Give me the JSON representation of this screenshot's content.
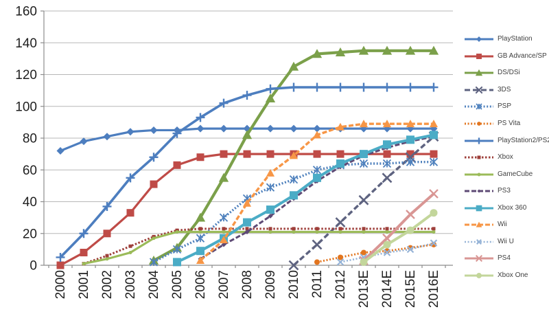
{
  "chart_data": {
    "type": "line",
    "title": "",
    "xlabel": "",
    "ylabel": "",
    "ylim": [
      0,
      160
    ],
    "ytick_step": 20,
    "grid": true,
    "legend_position": "right",
    "axis_text_color": "#1f1f1f",
    "grid_color": "#b7b7b7",
    "axis_line_color": "#8c8c8c",
    "categories": [
      "2000",
      "2001",
      "2002",
      "2003",
      "2004",
      "2005",
      "2006",
      "2007",
      "2008",
      "2009",
      "2010",
      "2011",
      "2012",
      "2013E",
      "2014E",
      "2015E",
      "2016E"
    ],
    "series": [
      {
        "id": "playstation",
        "name": "PlayStation",
        "color": "#4d7ebf",
        "marker": "diamond",
        "marker_size": 11,
        "width": 3.2,
        "dash": "",
        "values": [
          72,
          78,
          81,
          84,
          85,
          85,
          86,
          86,
          86,
          86,
          86,
          86,
          86,
          86,
          86,
          86,
          86
        ]
      },
      {
        "id": "gb-advance-sp",
        "name": "GB Advance/SP",
        "color": "#bf4b47",
        "marker": "square",
        "marker_size": 11,
        "width": 3.2,
        "dash": "",
        "values": [
          0,
          8,
          20,
          33,
          51,
          63,
          68,
          70,
          70,
          70,
          70,
          70,
          70,
          70,
          70,
          70,
          70
        ]
      },
      {
        "id": "ds-dsi",
        "name": "DS/DSi",
        "color": "#7ba04a",
        "marker": "triangle",
        "marker_size": 13,
        "width": 4.2,
        "dash": "",
        "values": [
          null,
          null,
          null,
          null,
          3,
          11,
          30,
          55,
          82,
          105,
          125,
          133,
          134,
          135,
          135,
          135,
          135
        ]
      },
      {
        "id": "3ds",
        "name": "3DS",
        "color": "#5e6380",
        "marker": "x",
        "marker_size": 13,
        "width": 3.4,
        "dash": "8,4",
        "values": [
          null,
          null,
          null,
          null,
          null,
          null,
          null,
          null,
          null,
          null,
          0,
          13,
          27,
          41,
          55,
          68,
          81
        ]
      },
      {
        "id": "psp",
        "name": "PSP",
        "color": "#4f81bd",
        "marker": "star",
        "marker_size": 11,
        "width": 3.4,
        "dash": "2,2.6",
        "values": [
          null,
          null,
          null,
          null,
          2,
          10,
          17,
          30,
          42,
          49,
          54,
          60,
          63,
          64,
          64,
          65,
          65
        ]
      },
      {
        "id": "ps-vita",
        "name": "PS Vita",
        "color": "#e2751f",
        "marker": "circle",
        "marker_size": 8,
        "width": 3,
        "dash": "2,2.6",
        "values": [
          null,
          null,
          null,
          null,
          null,
          null,
          null,
          null,
          null,
          null,
          null,
          2,
          5,
          8,
          9,
          11,
          13
        ]
      },
      {
        "id": "playstation2-ps2",
        "name": "PlayStation2/PS2",
        "color": "#4d7ebf",
        "marker": "plus",
        "marker_size": 13,
        "width": 3.6,
        "dash": "",
        "values": [
          5,
          20,
          37,
          55,
          68,
          83,
          93,
          102,
          107,
          111,
          112,
          112,
          112,
          112,
          112,
          112,
          112
        ]
      },
      {
        "id": "xbox",
        "name": "Xbox",
        "color": "#9e3f3a",
        "marker": "square",
        "marker_size": 5,
        "width": 3,
        "dash": "2.5,2.5",
        "values": [
          null,
          1,
          6,
          12,
          18,
          22,
          23,
          23,
          23,
          23,
          23,
          23,
          23,
          23,
          23,
          23,
          23
        ]
      },
      {
        "id": "gamecube",
        "name": "GameCube",
        "color": "#9bbb59",
        "marker": "circle",
        "marker_size": 5,
        "width": 3.2,
        "dash": "",
        "values": [
          null,
          1,
          4,
          8,
          17,
          21,
          21,
          21,
          21,
          21,
          21,
          21,
          21,
          21,
          21,
          21,
          21
        ]
      },
      {
        "id": "ps3",
        "name": "PS3",
        "color": "#5e4a75",
        "marker": "diamond",
        "marker_size": 7,
        "width": 3,
        "dash": "7,3",
        "values": [
          null,
          null,
          null,
          null,
          null,
          null,
          4,
          13,
          21,
          31,
          42,
          53,
          62,
          69,
          74,
          78,
          81
        ]
      },
      {
        "id": "xbox-360",
        "name": "Xbox 360",
        "color": "#4bacc6",
        "marker": "square",
        "marker_size": 12,
        "width": 4,
        "dash": "",
        "values": [
          null,
          null,
          null,
          null,
          null,
          2,
          9,
          17,
          27,
          35,
          44,
          55,
          64,
          70,
          76,
          79,
          82
        ]
      },
      {
        "id": "wii",
        "name": "Wii",
        "color": "#f79646",
        "marker": "triangle",
        "marker_size": 11,
        "width": 3.4,
        "dash": "7,3",
        "values": [
          null,
          null,
          null,
          null,
          null,
          null,
          3,
          16,
          39,
          58,
          69,
          82,
          87,
          89,
          89,
          89,
          89
        ]
      },
      {
        "id": "wii-u",
        "name": "Wii U",
        "color": "#95b3d7",
        "marker": "x",
        "marker_size": 9,
        "width": 2.6,
        "dash": "2,2.6",
        "values": [
          null,
          null,
          null,
          null,
          null,
          null,
          null,
          null,
          null,
          null,
          null,
          null,
          2,
          5,
          8,
          10,
          14
        ]
      },
      {
        "id": "ps4",
        "name": "PS4",
        "color": "#d99694",
        "marker": "x",
        "marker_size": 12,
        "width": 4,
        "dash": "",
        "values": [
          null,
          null,
          null,
          null,
          null,
          null,
          null,
          null,
          null,
          null,
          null,
          null,
          null,
          3,
          17,
          32,
          45
        ]
      },
      {
        "id": "xbox-one",
        "name": "Xbox One",
        "color": "#c3d69b",
        "marker": "circle",
        "marker_size": 11,
        "width": 4,
        "dash": "",
        "values": [
          null,
          null,
          null,
          null,
          null,
          null,
          null,
          null,
          null,
          null,
          null,
          null,
          null,
          2,
          13,
          22,
          33
        ]
      }
    ]
  }
}
